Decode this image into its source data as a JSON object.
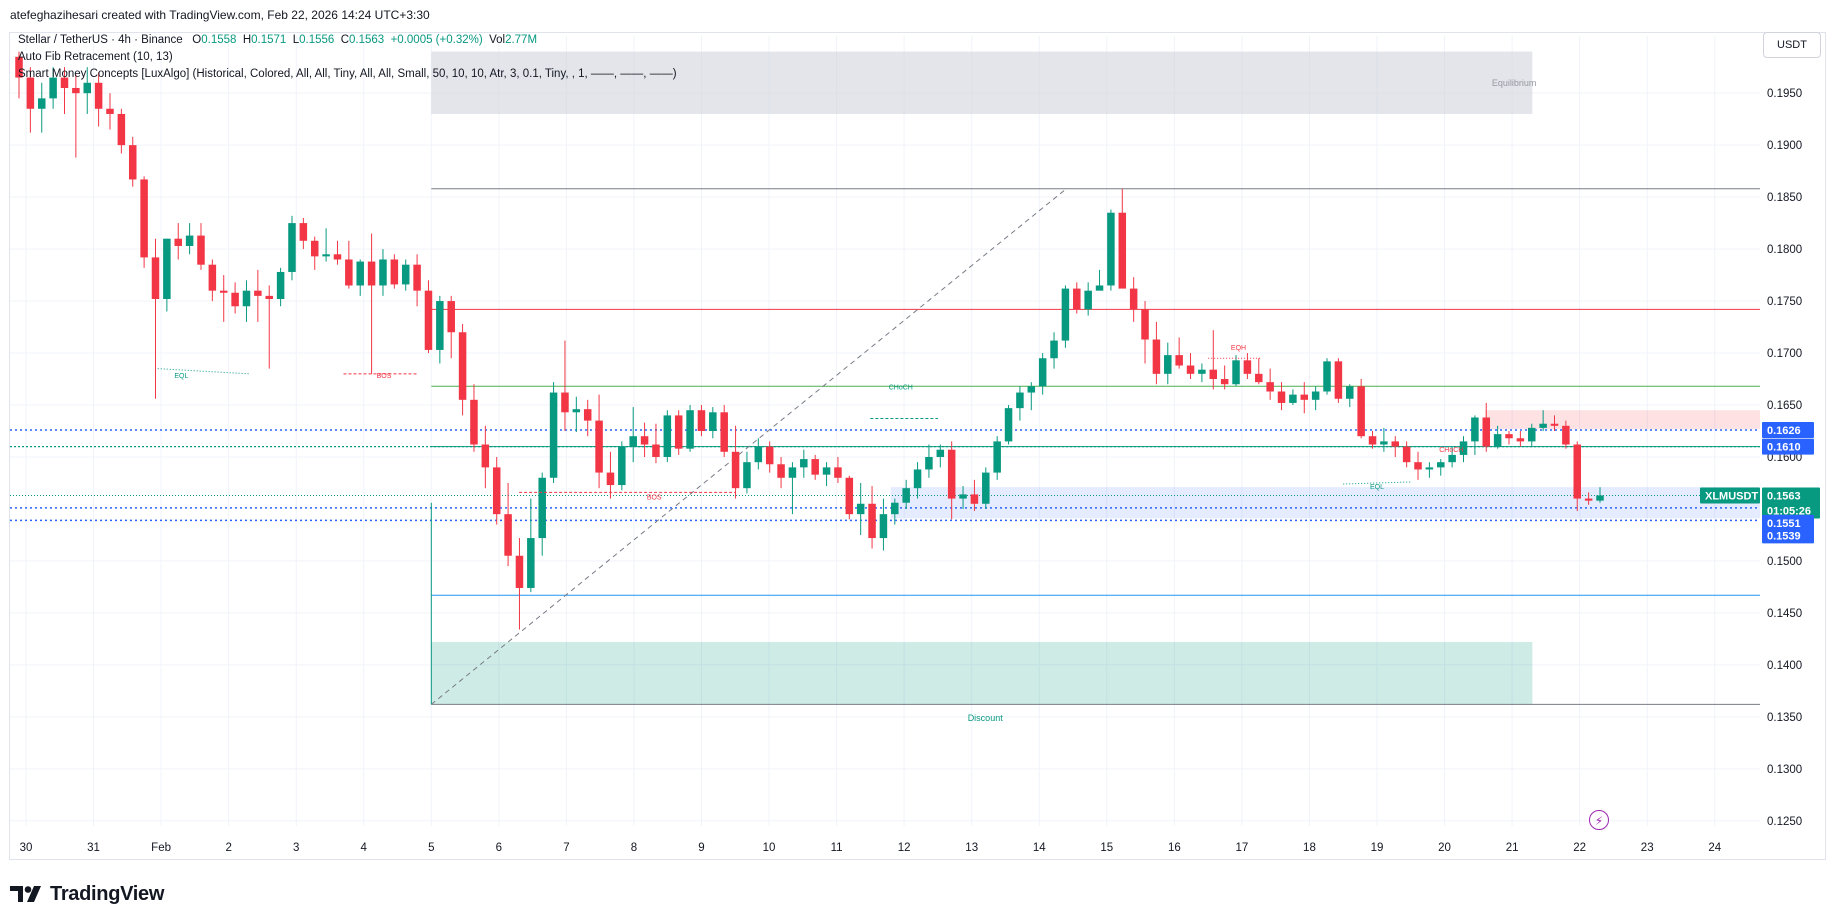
{
  "header": {
    "attribution": "atefeghazihesari created with TradingView.com, Feb 22, 2026 14:24 UTC+3:30"
  },
  "legend": {
    "symbol": "Stellar / TetherUS · 4h · Binance",
    "o_label": "O",
    "o": "0.1558",
    "h_label": "H",
    "h": "0.1571",
    "l_label": "L",
    "l": "0.1556",
    "c_label": "C",
    "c": "0.1563",
    "change": "+0.0005 (+0.32%)",
    "vol_label": "Vol",
    "vol": "2.77M",
    "ind1": "Auto Fib Retracement (10, 13)",
    "ind2": "Smart Money Concepts [LuxAlgo] (Historical, Colored, All, All, Tiny, All, All, Small, 50, 10, 10, Atr, 3, 0.1, Tiny, , 1, ——, ——, ——)"
  },
  "currency": "USDT",
  "brand": {
    "name": "TradingView"
  },
  "flash_icon": "lightning-icon",
  "colors": {
    "up": "#089981",
    "down": "#f23645",
    "axis_text": "#131722",
    "grid": "#f0f3fa",
    "blue_label": "#2962ff",
    "green_label": "#089981"
  },
  "chart_data": {
    "type": "candlestick",
    "symbol": "XLMUSDT",
    "timeframe": "4h",
    "x_labels": [
      "30",
      "31",
      "Feb",
      "2",
      "3",
      "4",
      "5",
      "6",
      "7",
      "8",
      "9",
      "10",
      "11",
      "12",
      "13",
      "14",
      "15",
      "16",
      "17",
      "18",
      "19",
      "20",
      "21",
      "22",
      "23",
      "24"
    ],
    "ylim": [
      0.1245,
      0.2005
    ],
    "y_ticks": [
      "0.1950",
      "0.1900",
      "0.1850",
      "0.1800",
      "0.1750",
      "0.1700",
      "0.1650",
      "0.1600",
      "0.1500",
      "0.1450",
      "0.1400",
      "0.1350",
      "0.1300",
      "0.1250"
    ],
    "grid": true,
    "price_labels": [
      {
        "value": "0.1626",
        "color": "#2962ff"
      },
      {
        "value": "0.1610",
        "color": "#2962ff"
      },
      {
        "value": "XLMUSDT",
        "color": "#089981"
      },
      {
        "value": "0.1563",
        "color": "#089981"
      },
      {
        "value": "01:05:26",
        "color": "#089981"
      },
      {
        "value": "0.1551",
        "color": "#2962ff"
      },
      {
        "value": "0.1539",
        "color": "#2962ff"
      }
    ],
    "zones": [
      {
        "label": "Equilibrium",
        "from": 0.193,
        "to": 0.199
      },
      {
        "label": "Discount",
        "from": 0.1362,
        "to": 0.1422
      },
      {
        "label": "",
        "from": 0.1541,
        "to": 0.1571
      },
      {
        "label": "",
        "from": 0.1627,
        "to": 0.1645
      }
    ],
    "horizontal_levels": [
      0.1858,
      0.1742,
      0.1668,
      0.161,
      0.1467,
      0.1362,
      0.1626,
      0.1551,
      0.1539,
      0.1563
    ],
    "annotations": [
      "EQL",
      "BOS",
      "CHoCH",
      "EQH",
      "CHoCH",
      "EQL",
      "Equilibrium",
      "Discount"
    ],
    "candles": [
      [
        0.1985,
        0.199,
        0.1945,
        0.1965
      ],
      [
        0.1965,
        0.1975,
        0.1912,
        0.1935
      ],
      [
        0.1935,
        0.196,
        0.1912,
        0.1945
      ],
      [
        0.1945,
        0.1975,
        0.1935,
        0.1965
      ],
      [
        0.1965,
        0.1975,
        0.193,
        0.1955
      ],
      [
        0.1955,
        0.1968,
        0.1888,
        0.195
      ],
      [
        0.195,
        0.1975,
        0.193,
        0.196
      ],
      [
        0.196,
        0.197,
        0.1918,
        0.1935
      ],
      [
        0.1935,
        0.195,
        0.1915,
        0.193
      ],
      [
        0.193,
        0.1935,
        0.1892,
        0.19
      ],
      [
        0.19,
        0.1908,
        0.186,
        0.1867
      ],
      [
        0.1867,
        0.187,
        0.1782,
        0.1792
      ],
      [
        0.1792,
        0.181,
        0.1656,
        0.1752
      ],
      [
        0.1752,
        0.181,
        0.174,
        0.181
      ],
      [
        0.181,
        0.1825,
        0.179,
        0.1803
      ],
      [
        0.1803,
        0.1825,
        0.1795,
        0.1813
      ],
      [
        0.1813,
        0.1825,
        0.178,
        0.1785
      ],
      [
        0.1785,
        0.179,
        0.175,
        0.176
      ],
      [
        0.176,
        0.1775,
        0.173,
        0.1758
      ],
      [
        0.1758,
        0.1768,
        0.1738,
        0.1745
      ],
      [
        0.1745,
        0.177,
        0.173,
        0.176
      ],
      [
        0.176,
        0.178,
        0.173,
        0.1755
      ],
      [
        0.1755,
        0.1765,
        0.1685,
        0.1752
      ],
      [
        0.1752,
        0.1782,
        0.1745,
        0.1778
      ],
      [
        0.1778,
        0.1832,
        0.177,
        0.1825
      ],
      [
        0.1825,
        0.183,
        0.18,
        0.1808
      ],
      [
        0.1808,
        0.1812,
        0.178,
        0.1793
      ],
      [
        0.1793,
        0.182,
        0.1788,
        0.1795
      ],
      [
        0.1795,
        0.1808,
        0.1785,
        0.179
      ],
      [
        0.179,
        0.1808,
        0.1762,
        0.1765
      ],
      [
        0.1765,
        0.179,
        0.1755,
        0.1788
      ],
      [
        0.1788,
        0.1815,
        0.168,
        0.1765
      ],
      [
        0.1765,
        0.18,
        0.1755,
        0.179
      ],
      [
        0.179,
        0.1795,
        0.1762,
        0.1766
      ],
      [
        0.1766,
        0.179,
        0.176,
        0.1785
      ],
      [
        0.1785,
        0.1795,
        0.1745,
        0.176
      ],
      [
        0.176,
        0.177,
        0.17,
        0.1703
      ],
      [
        0.1703,
        0.1755,
        0.169,
        0.175
      ],
      [
        0.175,
        0.1755,
        0.1695,
        0.172
      ],
      [
        0.172,
        0.1728,
        0.164,
        0.1655
      ],
      [
        0.1655,
        0.167,
        0.1605,
        0.1612
      ],
      [
        0.1612,
        0.163,
        0.157,
        0.159
      ],
      [
        0.159,
        0.16,
        0.1535,
        0.1545
      ],
      [
        0.1545,
        0.1575,
        0.1495,
        0.1505
      ],
      [
        0.1505,
        0.1522,
        0.1434,
        0.1474
      ],
      [
        0.1474,
        0.156,
        0.147,
        0.1522
      ],
      [
        0.1522,
        0.1585,
        0.1505,
        0.158
      ],
      [
        0.158,
        0.1672,
        0.1575,
        0.1662
      ],
      [
        0.1662,
        0.1712,
        0.1625,
        0.1643
      ],
      [
        0.1643,
        0.1658,
        0.1624,
        0.1646
      ],
      [
        0.1646,
        0.1655,
        0.162,
        0.1635
      ],
      [
        0.1635,
        0.166,
        0.157,
        0.1585
      ],
      [
        0.1585,
        0.1605,
        0.156,
        0.1573
      ],
      [
        0.1573,
        0.1615,
        0.1568,
        0.161
      ],
      [
        0.161,
        0.1648,
        0.1595,
        0.162
      ],
      [
        0.162,
        0.1633,
        0.16,
        0.1612
      ],
      [
        0.1612,
        0.1632,
        0.1594,
        0.16
      ],
      [
        0.16,
        0.1645,
        0.1595,
        0.164
      ],
      [
        0.164,
        0.1645,
        0.1602,
        0.1608
      ],
      [
        0.1608,
        0.165,
        0.1605,
        0.1645
      ],
      [
        0.1645,
        0.165,
        0.162,
        0.1625
      ],
      [
        0.1625,
        0.1648,
        0.1618,
        0.1643
      ],
      [
        0.1643,
        0.165,
        0.16,
        0.1605
      ],
      [
        0.1605,
        0.163,
        0.156,
        0.157
      ],
      [
        0.157,
        0.1605,
        0.1565,
        0.1595
      ],
      [
        0.1595,
        0.1618,
        0.1588,
        0.161
      ],
      [
        0.161,
        0.1615,
        0.1585,
        0.1593
      ],
      [
        0.1593,
        0.16,
        0.157,
        0.158
      ],
      [
        0.158,
        0.1595,
        0.1545,
        0.159
      ],
      [
        0.159,
        0.1607,
        0.158,
        0.1598
      ],
      [
        0.1598,
        0.1602,
        0.1578,
        0.1583
      ],
      [
        0.1583,
        0.1595,
        0.1572,
        0.159
      ],
      [
        0.159,
        0.16,
        0.1575,
        0.158
      ],
      [
        0.158,
        0.1582,
        0.154,
        0.1545
      ],
      [
        0.1545,
        0.1575,
        0.1525,
        0.1555
      ],
      [
        0.1555,
        0.1572,
        0.1512,
        0.1522
      ],
      [
        0.1522,
        0.156,
        0.151,
        0.1545
      ],
      [
        0.1545,
        0.156,
        0.1535,
        0.1556
      ],
      [
        0.1556,
        0.1578,
        0.155,
        0.157
      ],
      [
        0.157,
        0.1595,
        0.156,
        0.1588
      ],
      [
        0.1588,
        0.1612,
        0.158,
        0.16
      ],
      [
        0.16,
        0.1612,
        0.159,
        0.1607
      ],
      [
        0.1607,
        0.1615,
        0.154,
        0.156
      ],
      [
        0.156,
        0.1572,
        0.155,
        0.1564
      ],
      [
        0.1564,
        0.1578,
        0.1548,
        0.1555
      ],
      [
        0.1555,
        0.159,
        0.155,
        0.1585
      ],
      [
        0.1585,
        0.162,
        0.1578,
        0.1615
      ],
      [
        0.1615,
        0.165,
        0.1612,
        0.1647
      ],
      [
        0.1647,
        0.1668,
        0.1635,
        0.1662
      ],
      [
        0.1662,
        0.1672,
        0.1645,
        0.1668
      ],
      [
        0.1668,
        0.17,
        0.166,
        0.1695
      ],
      [
        0.1695,
        0.172,
        0.1685,
        0.1712
      ],
      [
        0.1712,
        0.1765,
        0.1705,
        0.1762
      ],
      [
        0.1762,
        0.1768,
        0.1738,
        0.1742
      ],
      [
        0.1742,
        0.1768,
        0.1736,
        0.176
      ],
      [
        0.176,
        0.178,
        0.1762,
        0.1765
      ],
      [
        0.1765,
        0.1838,
        0.176,
        0.1835
      ],
      [
        0.1835,
        0.1858,
        0.1765,
        0.1762
      ],
      [
        0.1762,
        0.1773,
        0.173,
        0.1742
      ],
      [
        0.1742,
        0.175,
        0.169,
        0.1713
      ],
      [
        0.1713,
        0.173,
        0.167,
        0.168
      ],
      [
        0.168,
        0.171,
        0.167,
        0.1698
      ],
      [
        0.1698,
        0.1715,
        0.1685,
        0.1688
      ],
      [
        0.1688,
        0.17,
        0.1675,
        0.168
      ],
      [
        0.168,
        0.169,
        0.1672,
        0.1684
      ],
      [
        0.1684,
        0.1722,
        0.1665,
        0.1675
      ],
      [
        0.1675,
        0.1688,
        0.1665,
        0.167
      ],
      [
        0.167,
        0.1698,
        0.1668,
        0.1693
      ],
      [
        0.1693,
        0.17,
        0.1675,
        0.168
      ],
      [
        0.168,
        0.1695,
        0.167,
        0.1672
      ],
      [
        0.1672,
        0.1685,
        0.1655,
        0.1663
      ],
      [
        0.1663,
        0.1672,
        0.1645,
        0.1652
      ],
      [
        0.1652,
        0.1665,
        0.165,
        0.166
      ],
      [
        0.166,
        0.1672,
        0.1642,
        0.1655
      ],
      [
        0.1655,
        0.1668,
        0.1645,
        0.1663
      ],
      [
        0.1663,
        0.1695,
        0.166,
        0.1692
      ],
      [
        0.1692,
        0.1695,
        0.1652,
        0.1656
      ],
      [
        0.1656,
        0.167,
        0.1648,
        0.1668
      ],
      [
        0.1668,
        0.1675,
        0.1618,
        0.162
      ],
      [
        0.162,
        0.1625,
        0.1608,
        0.1612
      ],
      [
        0.1612,
        0.1628,
        0.1605,
        0.1615
      ],
      [
        0.1615,
        0.162,
        0.16,
        0.161
      ],
      [
        0.161,
        0.1615,
        0.159,
        0.1595
      ],
      [
        0.1595,
        0.1605,
        0.1578,
        0.1588
      ],
      [
        0.1588,
        0.1595,
        0.158,
        0.159
      ],
      [
        0.159,
        0.1598,
        0.1582,
        0.1595
      ],
      [
        0.1595,
        0.161,
        0.159,
        0.1602
      ],
      [
        0.1602,
        0.162,
        0.1595,
        0.1615
      ],
      [
        0.1615,
        0.164,
        0.1602,
        0.1638
      ],
      [
        0.1638,
        0.1652,
        0.1605,
        0.161
      ],
      [
        0.161,
        0.163,
        0.1608,
        0.1622
      ],
      [
        0.1622,
        0.1625,
        0.1612,
        0.1618
      ],
      [
        0.1618,
        0.1625,
        0.161,
        0.1615
      ],
      [
        0.1615,
        0.1632,
        0.161,
        0.1628
      ],
      [
        0.1628,
        0.1645,
        0.1625,
        0.1632
      ],
      [
        0.1632,
        0.164,
        0.1625,
        0.163
      ],
      [
        0.163,
        0.1635,
        0.1608,
        0.1612
      ],
      [
        0.1612,
        0.1615,
        0.1548,
        0.156
      ],
      [
        0.156,
        0.1566,
        0.1554,
        0.1558
      ],
      [
        0.1558,
        0.1571,
        0.1556,
        0.1563
      ]
    ]
  }
}
